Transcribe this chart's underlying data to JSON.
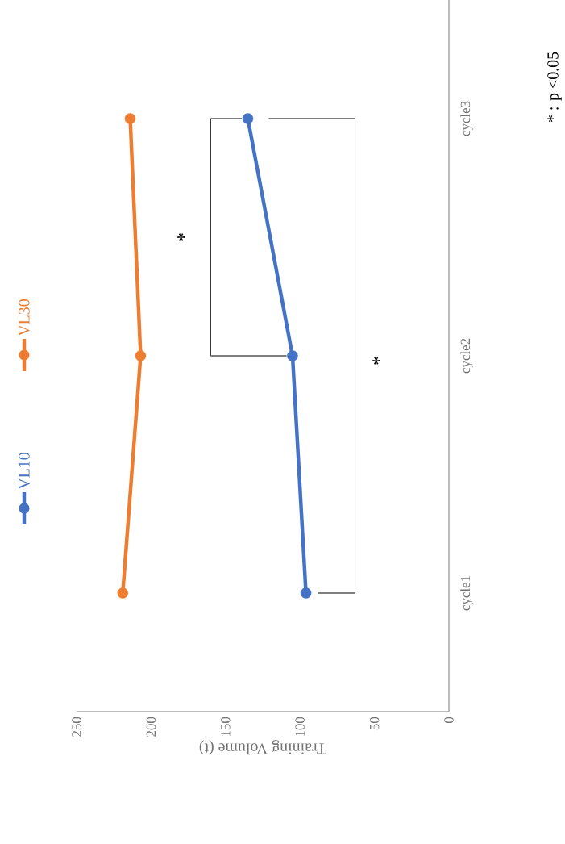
{
  "chart_data": {
    "type": "line",
    "orientation": "horizontal",
    "xlabel": "Training Volume (t)",
    "categories": [
      "cycle3",
      "cycle2",
      "cycle1"
    ],
    "series": [
      {
        "name": "VL10",
        "color": "#4472c4",
        "values": [
          135,
          105,
          96
        ]
      },
      {
        "name": "VL30",
        "color": "#ed7d31",
        "values": [
          214,
          207,
          219
        ]
      }
    ],
    "xlim": [
      250,
      0
    ],
    "xticks": [
      0,
      50,
      100,
      150,
      200,
      250
    ],
    "legend": "left",
    "marker": "circle",
    "annotations": [
      "*",
      "*",
      "* : p <0.05"
    ]
  }
}
